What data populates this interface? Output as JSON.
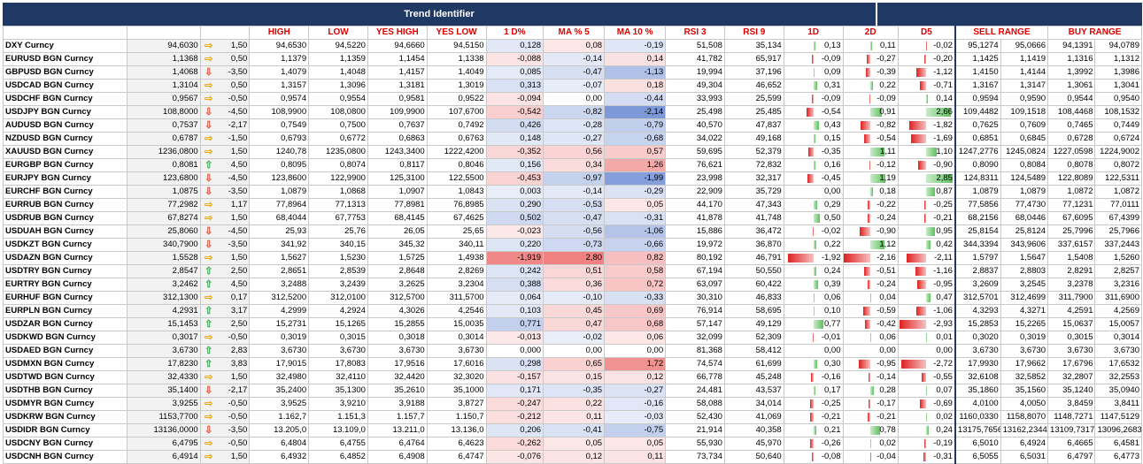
{
  "title": "Trend Identifier",
  "headers": [
    "HIGH",
    "LOW",
    "YES HIGH",
    "YES LOW",
    "1 D%",
    "MA % 5",
    "MA 10 %",
    "RSI 3",
    "RSI 9",
    "1D",
    "2D",
    "D5"
  ],
  "sell_range": "SELL RANGE",
  "buy_range": "BUY RANGE",
  "rows": [
    {
      "n": "DXY Curncy",
      "p": "94,6030",
      "t": "side",
      "tv": "1,50",
      "h": "94,6530",
      "l": "94,5220",
      "yh": "94,6660",
      "yl": "94,5150",
      "d1": "0,128",
      "m5": "0,08",
      "m10": "-0,19",
      "r3": "51,508",
      "r9": "35,134",
      "a": "0,13",
      "b": "0,11",
      "c": "-0,02",
      "s1": "95,1274",
      "s2": "95,0666",
      "b1": "94,1391",
      "b2": "94,0789"
    },
    {
      "n": "EURUSD BGN Curncy",
      "p": "1,1368",
      "t": "side",
      "tv": "0,50",
      "h": "1,1379",
      "l": "1,1359",
      "yh": "1,1454",
      "yl": "1,1338",
      "d1": "-0,088",
      "m5": "-0,14",
      "m10": "0,14",
      "r3": "41,782",
      "r9": "65,917",
      "a": "-0,09",
      "b": "-0,27",
      "c": "-0,20",
      "s1": "1,1425",
      "s2": "1,1419",
      "b1": "1,1316",
      "b2": "1,1312"
    },
    {
      "n": "GBPUSD BGN Curncy",
      "p": "1,4068",
      "t": "down",
      "tv": "-3,50",
      "h": "1,4079",
      "l": "1,4048",
      "yh": "1,4157",
      "yl": "1,4049",
      "d1": "0,085",
      "m5": "-0,47",
      "m10": "-1,13",
      "r3": "19,994",
      "r9": "37,196",
      "a": "0,09",
      "b": "-0,39",
      "c": "-1,12",
      "s1": "1,4150",
      "s2": "1,4144",
      "b1": "1,3992",
      "b2": "1,3986"
    },
    {
      "n": "USDCAD BGN Curncy",
      "p": "1,3104",
      "t": "side",
      "tv": "0,50",
      "h": "1,3157",
      "l": "1,3096",
      "yh": "1,3181",
      "yl": "1,3019",
      "d1": "0,313",
      "m5": "-0,07",
      "m10": "0,18",
      "r3": "49,304",
      "r9": "46,652",
      "a": "0,31",
      "b": "0,22",
      "c": "-0,71",
      "s1": "1,3167",
      "s2": "1,3147",
      "b1": "1,3061",
      "b2": "1,3041"
    },
    {
      "n": "USDCHF BGN Curncy",
      "p": "0,9567",
      "t": "side",
      "tv": "-0,50",
      "h": "0,9574",
      "l": "0,9554",
      "yh": "0,9581",
      "yl": "0,9522",
      "d1": "-0,094",
      "m5": "0,00",
      "m10": "-0,44",
      "r3": "33,993",
      "r9": "25,599",
      "a": "-0,09",
      "b": "-0,09",
      "c": "0,14",
      "s1": "0,9594",
      "s2": "0,9590",
      "b1": "0,9544",
      "b2": "0,9540"
    },
    {
      "n": "USDJPY BGN Curncy",
      "p": "108,8000",
      "t": "down",
      "tv": "-4,50",
      "h": "108,9900",
      "l": "108,0800",
      "yh": "109,9900",
      "yl": "107,6700",
      "d1": "-0,542",
      "m5": "-0,82",
      "m10": "-2,14",
      "r3": "25,498",
      "r9": "25,485",
      "a": "-0,54",
      "b": "0,91",
      "c": "2,66",
      "s1": "109,4482",
      "s2": "109,1518",
      "b1": "108,4468",
      "b2": "108,1532"
    },
    {
      "n": "AUDUSD BGN Curncy",
      "p": "0,7537",
      "t": "down",
      "tv": "-2,17",
      "h": "0,7549",
      "l": "0,7500",
      "yh": "0,7637",
      "yl": "0,7492",
      "d1": "0,426",
      "m5": "-0,28",
      "m10": "-0,79",
      "r3": "40,570",
      "r9": "47,837",
      "a": "0,43",
      "b": "-0,82",
      "c": "-1,82",
      "s1": "0,7625",
      "s2": "0,7609",
      "b1": "0,7465",
      "b2": "0,7449"
    },
    {
      "n": "NZDUSD BGN Curncy",
      "p": "0,6787",
      "t": "side",
      "tv": "-1,50",
      "h": "0,6793",
      "l": "0,6772",
      "yh": "0,6863",
      "yl": "0,6763",
      "d1": "0,148",
      "m5": "-0,27",
      "m10": "-0,68",
      "r3": "34,022",
      "r9": "49,168",
      "a": "0,15",
      "b": "-0,54",
      "c": "-1,69",
      "s1": "0,6851",
      "s2": "0,6845",
      "b1": "0,6728",
      "b2": "0,6724"
    },
    {
      "n": "XAUUSD BGN Curncy",
      "p": "1236,0800",
      "t": "side",
      "tv": "1,50",
      "h": "1240,78",
      "l": "1235,0800",
      "yh": "1243,3400",
      "yl": "1222,4200",
      "d1": "-0,352",
      "m5": "0,56",
      "m10": "0,57",
      "r3": "59,695",
      "r9": "52,379",
      "a": "-0,35",
      "b": "1,11",
      "c": "1,10",
      "s1": "1247,2776",
      "s2": "1245,0824",
      "b1": "1227,0598",
      "b2": "1224,9002"
    },
    {
      "n": "EURGBP BGN Curncy",
      "p": "0,8081",
      "t": "up",
      "tv": "4,50",
      "h": "0,8095",
      "l": "0,8074",
      "yh": "0,8117",
      "yl": "0,8046",
      "d1": "0,156",
      "m5": "0,34",
      "m10": "1,26",
      "r3": "76,621",
      "r9": "72,832",
      "a": "0,16",
      "b": "-0,12",
      "c": "-0,90",
      "s1": "0,8090",
      "s2": "0,8084",
      "b1": "0,8078",
      "b2": "0,8072"
    },
    {
      "n": "EURJPY BGN Curncy",
      "p": "123,6800",
      "t": "down",
      "tv": "-4,50",
      "h": "123,8600",
      "l": "122,9900",
      "yh": "125,3100",
      "yl": "122,5500",
      "d1": "-0,453",
      "m5": "-0,97",
      "m10": "-1,99",
      "r3": "23,998",
      "r9": "32,317",
      "a": "-0,45",
      "b": "1,19",
      "c": "2,85",
      "s1": "124,8311",
      "s2": "124,5489",
      "b1": "122,8089",
      "b2": "122,5311"
    },
    {
      "n": "EURCHF BGN Curncy",
      "p": "1,0875",
      "t": "down",
      "tv": "-3,50",
      "h": "1,0879",
      "l": "1,0868",
      "yh": "1,0907",
      "yl": "1,0843",
      "d1": "0,003",
      "m5": "-0,14",
      "m10": "-0,29",
      "r3": "22,909",
      "r9": "35,729",
      "a": "0,00",
      "b": "0,18",
      "c": "0,87",
      "s1": "1,0879",
      "s2": "1,0879",
      "b1": "1,0872",
      "b2": "1,0872"
    },
    {
      "n": "EURRUB BGN Curncy",
      "p": "77,2982",
      "t": "side",
      "tv": "1,17",
      "h": "77,8964",
      "l": "77,1313",
      "yh": "77,8981",
      "yl": "76,8985",
      "d1": "0,290",
      "m5": "-0,53",
      "m10": "0,05",
      "r3": "44,170",
      "r9": "47,343",
      "a": "0,29",
      "b": "-0,22",
      "c": "-0,25",
      "s1": "77,5856",
      "s2": "77,4730",
      "b1": "77,1231",
      "b2": "77,0111"
    },
    {
      "n": "USDRUB BGN Curncy",
      "p": "67,8274",
      "t": "side",
      "tv": "1,50",
      "h": "68,4044",
      "l": "67,7753",
      "yh": "68,4145",
      "yl": "67,4625",
      "d1": "0,502",
      "m5": "-0,47",
      "m10": "-0,31",
      "r3": "41,878",
      "r9": "41,748",
      "a": "0,50",
      "b": "-0,24",
      "c": "-0,21",
      "s1": "68,2156",
      "s2": "68,0446",
      "b1": "67,6095",
      "b2": "67,4399"
    },
    {
      "n": "USDUAH BGN Curncy",
      "p": "25,8060",
      "t": "down",
      "tv": "-4,50",
      "h": "25,93",
      "l": "25,76",
      "yh": "26,05",
      "yl": "25,65",
      "d1": "-0,023",
      "m5": "-0,56",
      "m10": "-1,06",
      "r3": "15,886",
      "r9": "36,472",
      "a": "-0,02",
      "b": "-0,90",
      "c": "0,95",
      "s1": "25,8154",
      "s2": "25,8124",
      "b1": "25,7996",
      "b2": "25,7966"
    },
    {
      "n": "USDKZT BGN Curncy",
      "p": "340,7900",
      "t": "down",
      "tv": "-3,50",
      "h": "341,92",
      "l": "340,15",
      "yh": "345,32",
      "yl": "340,11",
      "d1": "0,220",
      "m5": "-0,73",
      "m10": "-0,66",
      "r3": "19,972",
      "r9": "36,870",
      "a": "0,22",
      "b": "1,12",
      "c": "0,42",
      "s1": "344,3394",
      "s2": "343,9606",
      "b1": "337,6157",
      "b2": "337,2443"
    },
    {
      "n": "USDAZN BGN Curncy",
      "p": "1,5528",
      "t": "side",
      "tv": "1,50",
      "h": "1,5627",
      "l": "1,5230",
      "yh": "1,5725",
      "yl": "1,4938",
      "d1": "-1,919",
      "m5": "2,80",
      "m10": "0,82",
      "r3": "80,192",
      "r9": "46,791",
      "a": "-1,92",
      "b": "-2,16",
      "c": "-2,11",
      "s1": "1,5797",
      "s2": "1,5647",
      "b1": "1,5408",
      "b2": "1,5260"
    },
    {
      "n": "USDTRY BGN Curncy",
      "p": "2,8547",
      "t": "up",
      "tv": "2,50",
      "h": "2,8651",
      "l": "2,8539",
      "yh": "2,8648",
      "yl": "2,8269",
      "d1": "0,242",
      "m5": "0,51",
      "m10": "0,58",
      "r3": "67,194",
      "r9": "50,550",
      "a": "0,24",
      "b": "-0,51",
      "c": "-1,16",
      "s1": "2,8837",
      "s2": "2,8803",
      "b1": "2,8291",
      "b2": "2,8257"
    },
    {
      "n": "EURTRY BGN Curncy",
      "p": "3,2462",
      "t": "up",
      "tv": "4,50",
      "h": "3,2488",
      "l": "3,2439",
      "yh": "3,2625",
      "yl": "3,2304",
      "d1": "0,388",
      "m5": "0,36",
      "m10": "0,72",
      "r3": "63,097",
      "r9": "60,422",
      "a": "0,39",
      "b": "-0,24",
      "c": "-0,95",
      "s1": "3,2609",
      "s2": "3,2545",
      "b1": "3,2378",
      "b2": "3,2316"
    },
    {
      "n": "EURHUF BGN Curncy",
      "p": "312,1300",
      "t": "side",
      "tv": "0,17",
      "h": "312,5200",
      "l": "312,0100",
      "yh": "312,5700",
      "yl": "311,5700",
      "d1": "0,064",
      "m5": "-0,10",
      "m10": "-0,33",
      "r3": "30,310",
      "r9": "46,833",
      "a": "0,06",
      "b": "0,04",
      "c": "0,47",
      "s1": "312,5701",
      "s2": "312,4699",
      "b1": "311,7900",
      "b2": "311,6900"
    },
    {
      "n": "EURPLN BGN Curncy",
      "p": "4,2931",
      "t": "up",
      "tv": "3,17",
      "h": "4,2999",
      "l": "4,2924",
      "yh": "4,3026",
      "yl": "4,2546",
      "d1": "0,103",
      "m5": "0,45",
      "m10": "0,69",
      "r3": "76,914",
      "r9": "58,695",
      "a": "0,10",
      "b": "-0,59",
      "c": "-1,06",
      "s1": "4,3293",
      "s2": "4,3271",
      "b1": "4,2591",
      "b2": "4,2569"
    },
    {
      "n": "USDZAR BGN Curncy",
      "p": "15,1453",
      "t": "up",
      "tv": "2,50",
      "h": "15,2731",
      "l": "15,1265",
      "yh": "15,2855",
      "yl": "15,0035",
      "d1": "0,771",
      "m5": "0,47",
      "m10": "0,68",
      "r3": "57,147",
      "r9": "49,129",
      "a": "0,77",
      "b": "-0,42",
      "c": "-2,93",
      "s1": "15,2853",
      "s2": "15,2265",
      "b1": "15,0637",
      "b2": "15,0057"
    },
    {
      "n": "USDKWD BGN Curncy",
      "p": "0,3017",
      "t": "side",
      "tv": "-0,50",
      "h": "0,3019",
      "l": "0,3015",
      "yh": "0,3018",
      "yl": "0,3014",
      "d1": "-0,013",
      "m5": "-0,02",
      "m10": "0,06",
      "r3": "32,099",
      "r9": "52,309",
      "a": "-0,01",
      "b": "0,06",
      "c": "0,01",
      "s1": "0,3020",
      "s2": "0,3019",
      "b1": "0,3015",
      "b2": "0,3014"
    },
    {
      "n": "USDAED BGN Curncy",
      "p": "3,6730",
      "t": "up",
      "tv": "2,83",
      "h": "3,6730",
      "l": "3,6730",
      "yh": "3,6730",
      "yl": "3,6730",
      "d1": "0,000",
      "m5": "0,00",
      "m10": "0,00",
      "r3": "81,368",
      "r9": "58,412",
      "a": "0,00",
      "b": "0,00",
      "c": "0,00",
      "s1": "3,6730",
      "s2": "3,6730",
      "b1": "3,6730",
      "b2": "3,6730"
    },
    {
      "n": "USDMXN BGN Curncy",
      "p": "17,8230",
      "t": "up",
      "tv": "3,83",
      "h": "17,9015",
      "l": "17,8083",
      "yh": "17,9516",
      "yl": "17,6016",
      "d1": "0,298",
      "m5": "0,65",
      "m10": "1,72",
      "r3": "74,574",
      "r9": "61,699",
      "a": "0,30",
      "b": "-0,95",
      "c": "-2,72",
      "s1": "17,9930",
      "s2": "17,9662",
      "b1": "17,6796",
      "b2": "17,6532"
    },
    {
      "n": "USDTWD BGN Curncy",
      "p": "32,4330",
      "t": "side",
      "tv": "1,50",
      "h": "32,4980",
      "l": "32,4110",
      "yh": "32,4420",
      "yl": "32,3020",
      "d1": "-0,157",
      "m5": "0,15",
      "m10": "0,12",
      "r3": "66,778",
      "r9": "45,248",
      "a": "-0,16",
      "b": "-0,14",
      "c": "-0,55",
      "s1": "32,6108",
      "s2": "32,5852",
      "b1": "32,2807",
      "b2": "32,2553"
    },
    {
      "n": "USDTHB BGN Curncy",
      "p": "35,1400",
      "t": "down",
      "tv": "-2,17",
      "h": "35,2400",
      "l": "35,1300",
      "yh": "35,2610",
      "yl": "35,1000",
      "d1": "0,171",
      "m5": "-0,35",
      "m10": "-0,27",
      "r3": "24,481",
      "r9": "43,537",
      "a": "0,17",
      "b": "0,28",
      "c": "0,07",
      "s1": "35,1860",
      "s2": "35,1560",
      "b1": "35,1240",
      "b2": "35,0940"
    },
    {
      "n": "USDMYR BGN Curncy",
      "p": "3,9255",
      "t": "side",
      "tv": "-0,50",
      "h": "3,9525",
      "l": "3,9210",
      "yh": "3,9188",
      "yl": "3,8727",
      "d1": "-0,247",
      "m5": "0,22",
      "m10": "-0,16",
      "r3": "58,088",
      "r9": "34,014",
      "a": "-0,25",
      "b": "-0,17",
      "c": "-0,69",
      "s1": "4,0100",
      "s2": "4,0050",
      "b1": "3,8459",
      "b2": "3,8411"
    },
    {
      "n": "USDKRW BGN Curncy",
      "p": "1153,7700",
      "t": "side",
      "tv": "-0,50",
      "h": "1.162,7",
      "l": "1.151,3",
      "yh": "1.157,7",
      "yl": "1.150,7",
      "d1": "-0,212",
      "m5": "0,11",
      "m10": "-0,03",
      "r3": "52,430",
      "r9": "41,069",
      "a": "-0,21",
      "b": "-0,21",
      "c": "0,02",
      "s1": "1160,0330",
      "s2": "1158,8070",
      "b1": "1148,7271",
      "b2": "1147,5129"
    },
    {
      "n": "USDIDR BGN Curncy",
      "p": "13136,0000",
      "t": "down",
      "tv": "-3,50",
      "h": "13.205,0",
      "l": "13.109,0",
      "yh": "13.211,0",
      "yl": "13.136,0",
      "d1": "0,206",
      "m5": "-0,41",
      "m10": "-0,75",
      "r3": "21,914",
      "r9": "40,358",
      "a": "0,21",
      "b": "0,78",
      "c": "0,24",
      "s1": "13175,7656",
      "s2": "13162,2344",
      "b1": "13109,7317",
      "b2": "13096,2683"
    },
    {
      "n": "USDCNY BGN Curncy",
      "p": "6,4795",
      "t": "side",
      "tv": "-0,50",
      "h": "6,4804",
      "l": "6,4755",
      "yh": "6,4764",
      "yl": "6,4623",
      "d1": "-0,262",
      "m5": "0,05",
      "m10": "0,05",
      "r3": "55,930",
      "r9": "45,970",
      "a": "-0,26",
      "b": "0,02",
      "c": "-0,19",
      "s1": "6,5010",
      "s2": "6,4924",
      "b1": "6,4665",
      "b2": "6,4581"
    },
    {
      "n": "USDCNH BGN Curncy",
      "p": "6,4914",
      "t": "side",
      "tv": "1,50",
      "h": "6,4932",
      "l": "6,4852",
      "yh": "6,4908",
      "yl": "6,4747",
      "d1": "-0,076",
      "m5": "0,12",
      "m10": "0,11",
      "r3": "73,734",
      "r9": "50,640",
      "a": "-0,08",
      "b": "-0,04",
      "c": "-0,31",
      "s1": "6,5055",
      "s2": "6,5031",
      "b1": "6,4797",
      "b2": "6,4773"
    }
  ]
}
